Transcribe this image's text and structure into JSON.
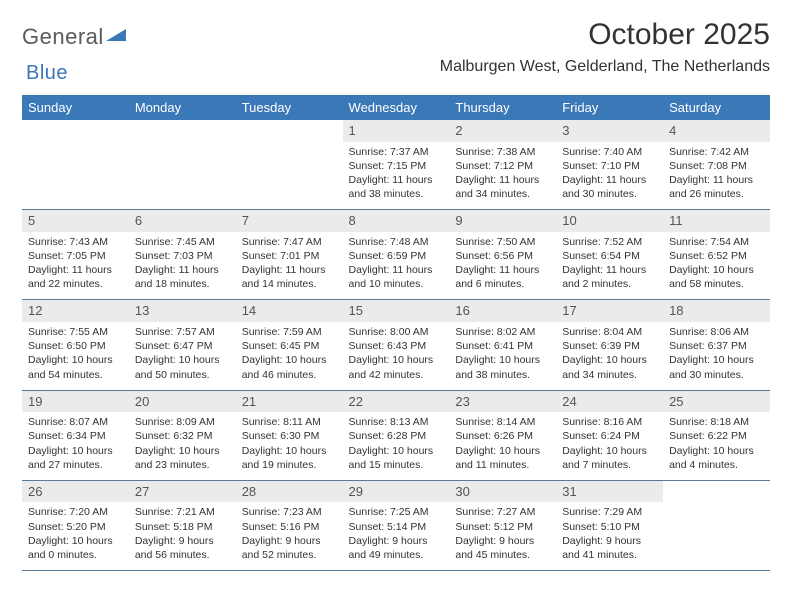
{
  "logo": {
    "word1": "General",
    "word2": "Blue"
  },
  "title": "October 2025",
  "location": "Malburgen West, Gelderland, The Netherlands",
  "colors": {
    "header_bg": "#3b78b8",
    "header_text": "#ffffff",
    "daynum_bg": "#ebebeb",
    "border": "#5a7a9a",
    "text": "#333333",
    "logo_gray": "#5a5a5a",
    "logo_blue": "#3b78b8"
  },
  "typography": {
    "title_fontsize": 30,
    "location_fontsize": 16,
    "dayheader_fontsize": 13,
    "cell_fontsize": 10.5
  },
  "day_headers": [
    "Sunday",
    "Monday",
    "Tuesday",
    "Wednesday",
    "Thursday",
    "Friday",
    "Saturday"
  ],
  "weeks": [
    [
      {
        "n": "",
        "sr": "",
        "ss": "",
        "dl": ""
      },
      {
        "n": "",
        "sr": "",
        "ss": "",
        "dl": ""
      },
      {
        "n": "",
        "sr": "",
        "ss": "",
        "dl": ""
      },
      {
        "n": "1",
        "sr": "Sunrise: 7:37 AM",
        "ss": "Sunset: 7:15 PM",
        "dl": "Daylight: 11 hours and 38 minutes."
      },
      {
        "n": "2",
        "sr": "Sunrise: 7:38 AM",
        "ss": "Sunset: 7:12 PM",
        "dl": "Daylight: 11 hours and 34 minutes."
      },
      {
        "n": "3",
        "sr": "Sunrise: 7:40 AM",
        "ss": "Sunset: 7:10 PM",
        "dl": "Daylight: 11 hours and 30 minutes."
      },
      {
        "n": "4",
        "sr": "Sunrise: 7:42 AM",
        "ss": "Sunset: 7:08 PM",
        "dl": "Daylight: 11 hours and 26 minutes."
      }
    ],
    [
      {
        "n": "5",
        "sr": "Sunrise: 7:43 AM",
        "ss": "Sunset: 7:05 PM",
        "dl": "Daylight: 11 hours and 22 minutes."
      },
      {
        "n": "6",
        "sr": "Sunrise: 7:45 AM",
        "ss": "Sunset: 7:03 PM",
        "dl": "Daylight: 11 hours and 18 minutes."
      },
      {
        "n": "7",
        "sr": "Sunrise: 7:47 AM",
        "ss": "Sunset: 7:01 PM",
        "dl": "Daylight: 11 hours and 14 minutes."
      },
      {
        "n": "8",
        "sr": "Sunrise: 7:48 AM",
        "ss": "Sunset: 6:59 PM",
        "dl": "Daylight: 11 hours and 10 minutes."
      },
      {
        "n": "9",
        "sr": "Sunrise: 7:50 AM",
        "ss": "Sunset: 6:56 PM",
        "dl": "Daylight: 11 hours and 6 minutes."
      },
      {
        "n": "10",
        "sr": "Sunrise: 7:52 AM",
        "ss": "Sunset: 6:54 PM",
        "dl": "Daylight: 11 hours and 2 minutes."
      },
      {
        "n": "11",
        "sr": "Sunrise: 7:54 AM",
        "ss": "Sunset: 6:52 PM",
        "dl": "Daylight: 10 hours and 58 minutes."
      }
    ],
    [
      {
        "n": "12",
        "sr": "Sunrise: 7:55 AM",
        "ss": "Sunset: 6:50 PM",
        "dl": "Daylight: 10 hours and 54 minutes."
      },
      {
        "n": "13",
        "sr": "Sunrise: 7:57 AM",
        "ss": "Sunset: 6:47 PM",
        "dl": "Daylight: 10 hours and 50 minutes."
      },
      {
        "n": "14",
        "sr": "Sunrise: 7:59 AM",
        "ss": "Sunset: 6:45 PM",
        "dl": "Daylight: 10 hours and 46 minutes."
      },
      {
        "n": "15",
        "sr": "Sunrise: 8:00 AM",
        "ss": "Sunset: 6:43 PM",
        "dl": "Daylight: 10 hours and 42 minutes."
      },
      {
        "n": "16",
        "sr": "Sunrise: 8:02 AM",
        "ss": "Sunset: 6:41 PM",
        "dl": "Daylight: 10 hours and 38 minutes."
      },
      {
        "n": "17",
        "sr": "Sunrise: 8:04 AM",
        "ss": "Sunset: 6:39 PM",
        "dl": "Daylight: 10 hours and 34 minutes."
      },
      {
        "n": "18",
        "sr": "Sunrise: 8:06 AM",
        "ss": "Sunset: 6:37 PM",
        "dl": "Daylight: 10 hours and 30 minutes."
      }
    ],
    [
      {
        "n": "19",
        "sr": "Sunrise: 8:07 AM",
        "ss": "Sunset: 6:34 PM",
        "dl": "Daylight: 10 hours and 27 minutes."
      },
      {
        "n": "20",
        "sr": "Sunrise: 8:09 AM",
        "ss": "Sunset: 6:32 PM",
        "dl": "Daylight: 10 hours and 23 minutes."
      },
      {
        "n": "21",
        "sr": "Sunrise: 8:11 AM",
        "ss": "Sunset: 6:30 PM",
        "dl": "Daylight: 10 hours and 19 minutes."
      },
      {
        "n": "22",
        "sr": "Sunrise: 8:13 AM",
        "ss": "Sunset: 6:28 PM",
        "dl": "Daylight: 10 hours and 15 minutes."
      },
      {
        "n": "23",
        "sr": "Sunrise: 8:14 AM",
        "ss": "Sunset: 6:26 PM",
        "dl": "Daylight: 10 hours and 11 minutes."
      },
      {
        "n": "24",
        "sr": "Sunrise: 8:16 AM",
        "ss": "Sunset: 6:24 PM",
        "dl": "Daylight: 10 hours and 7 minutes."
      },
      {
        "n": "25",
        "sr": "Sunrise: 8:18 AM",
        "ss": "Sunset: 6:22 PM",
        "dl": "Daylight: 10 hours and 4 minutes."
      }
    ],
    [
      {
        "n": "26",
        "sr": "Sunrise: 7:20 AM",
        "ss": "Sunset: 5:20 PM",
        "dl": "Daylight: 10 hours and 0 minutes."
      },
      {
        "n": "27",
        "sr": "Sunrise: 7:21 AM",
        "ss": "Sunset: 5:18 PM",
        "dl": "Daylight: 9 hours and 56 minutes."
      },
      {
        "n": "28",
        "sr": "Sunrise: 7:23 AM",
        "ss": "Sunset: 5:16 PM",
        "dl": "Daylight: 9 hours and 52 minutes."
      },
      {
        "n": "29",
        "sr": "Sunrise: 7:25 AM",
        "ss": "Sunset: 5:14 PM",
        "dl": "Daylight: 9 hours and 49 minutes."
      },
      {
        "n": "30",
        "sr": "Sunrise: 7:27 AM",
        "ss": "Sunset: 5:12 PM",
        "dl": "Daylight: 9 hours and 45 minutes."
      },
      {
        "n": "31",
        "sr": "Sunrise: 7:29 AM",
        "ss": "Sunset: 5:10 PM",
        "dl": "Daylight: 9 hours and 41 minutes."
      },
      {
        "n": "",
        "sr": "",
        "ss": "",
        "dl": ""
      }
    ]
  ]
}
